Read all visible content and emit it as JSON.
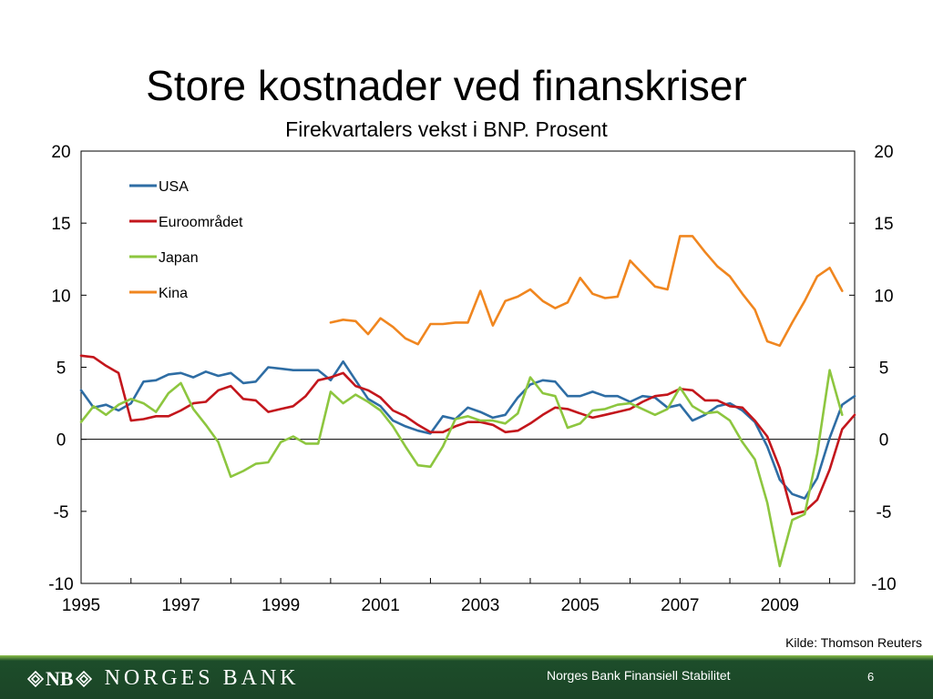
{
  "slide": {
    "title": "Store kostnader ved finanskriser",
    "source": "Kilde: Thomson Reuters",
    "footer_brand": "NORGES BANK",
    "logo_text": "NB",
    "footer_text": "Norges Bank Finansiell Stabilitet",
    "page_number": "6"
  },
  "chart_data": {
    "type": "line",
    "title": "Firekvartalers vekst i BNP. Prosent",
    "ylim": [
      -10,
      20
    ],
    "yticks": [
      20,
      15,
      10,
      5,
      0,
      -5,
      -10
    ],
    "ytick_labels": [
      "20",
      "15",
      "10",
      "5",
      "0",
      "-5",
      "-10"
    ],
    "xlim": [
      1995.0,
      2010.5
    ],
    "xticks": [
      1995,
      1997,
      1999,
      2001,
      2003,
      2005,
      2007,
      2009
    ],
    "xtick_labels": [
      "1995",
      "1997",
      "1999",
      "2001",
      "2003",
      "2005",
      "2007",
      "2009"
    ],
    "x_start": 1995.0,
    "x_step": 0.25,
    "legend_position": "top-left",
    "grid": false,
    "zero_line": true,
    "series": [
      {
        "name": "USA",
        "color": "#2e6da4",
        "start_index": 0,
        "values": [
          3.4,
          2.2,
          2.4,
          2.0,
          2.5,
          4.0,
          4.1,
          4.5,
          4.6,
          4.3,
          4.7,
          4.4,
          4.6,
          3.9,
          4.0,
          5.0,
          4.9,
          4.8,
          4.8,
          4.8,
          4.1,
          5.4,
          4.1,
          2.8,
          2.3,
          1.3,
          0.9,
          0.6,
          0.4,
          1.6,
          1.4,
          2.2,
          1.9,
          1.5,
          1.7,
          2.9,
          3.8,
          4.1,
          4.0,
          3.0,
          3.0,
          3.3,
          3.0,
          3.0,
          2.6,
          3.0,
          2.9,
          2.2,
          2.4,
          1.3,
          1.7,
          2.3,
          2.5,
          2.0,
          1.2,
          -0.5,
          -2.8,
          -3.8,
          -4.1,
          -2.7,
          0.1,
          2.4,
          3.0
        ]
      },
      {
        "name": "Euroområdet",
        "color": "#c3161c",
        "start_index": 0,
        "values": [
          5.8,
          5.7,
          5.1,
          4.6,
          1.3,
          1.4,
          1.6,
          1.6,
          2.0,
          2.5,
          2.6,
          3.4,
          3.7,
          2.8,
          2.7,
          1.9,
          2.1,
          2.3,
          3.0,
          4.1,
          4.3,
          4.6,
          3.7,
          3.4,
          2.9,
          2.0,
          1.6,
          1.0,
          0.5,
          0.5,
          0.9,
          1.2,
          1.2,
          1.0,
          0.5,
          0.6,
          1.1,
          1.7,
          2.2,
          2.1,
          1.8,
          1.5,
          1.7,
          1.9,
          2.1,
          2.6,
          3.0,
          3.1,
          3.5,
          3.4,
          2.7,
          2.7,
          2.3,
          2.2,
          1.3,
          0.2,
          -2.0,
          -5.2,
          -5.0,
          -4.2,
          -2.1,
          0.7,
          1.7
        ]
      },
      {
        "name": "Japan",
        "color": "#8dc63f",
        "start_index": 0,
        "values": [
          1.2,
          2.3,
          1.7,
          2.4,
          2.8,
          2.5,
          1.9,
          3.2,
          3.9,
          2.1,
          1.0,
          -0.2,
          -2.6,
          -2.2,
          -1.7,
          -1.6,
          -0.2,
          0.2,
          -0.3,
          -0.3,
          3.3,
          2.5,
          3.1,
          2.6,
          2.0,
          0.9,
          -0.5,
          -1.8,
          -1.9,
          -0.5,
          1.4,
          1.6,
          1.3,
          1.3,
          1.1,
          1.8,
          4.3,
          3.2,
          3.0,
          0.8,
          1.1,
          2.0,
          2.1,
          2.4,
          2.5,
          2.1,
          1.7,
          2.1,
          3.6,
          2.3,
          1.8,
          1.9,
          1.3,
          -0.2,
          -1.4,
          -4.4,
          -8.8,
          -5.6,
          -5.2,
          -1.0,
          4.8,
          1.7
        ]
      },
      {
        "name": "Kina",
        "color": "#f0861f",
        "start_index": 20,
        "values": [
          8.1,
          8.3,
          8.2,
          7.3,
          8.4,
          7.8,
          7.0,
          6.6,
          8.0,
          8.0,
          8.1,
          8.1,
          10.3,
          7.9,
          9.6,
          9.9,
          10.4,
          9.6,
          9.1,
          9.5,
          11.2,
          10.1,
          9.8,
          9.9,
          12.4,
          11.5,
          10.6,
          10.4,
          14.1,
          14.1,
          13.0,
          12.0,
          11.3,
          10.1,
          9.0,
          6.8,
          6.5,
          8.1,
          9.6,
          11.3,
          11.9,
          10.3
        ]
      }
    ]
  }
}
